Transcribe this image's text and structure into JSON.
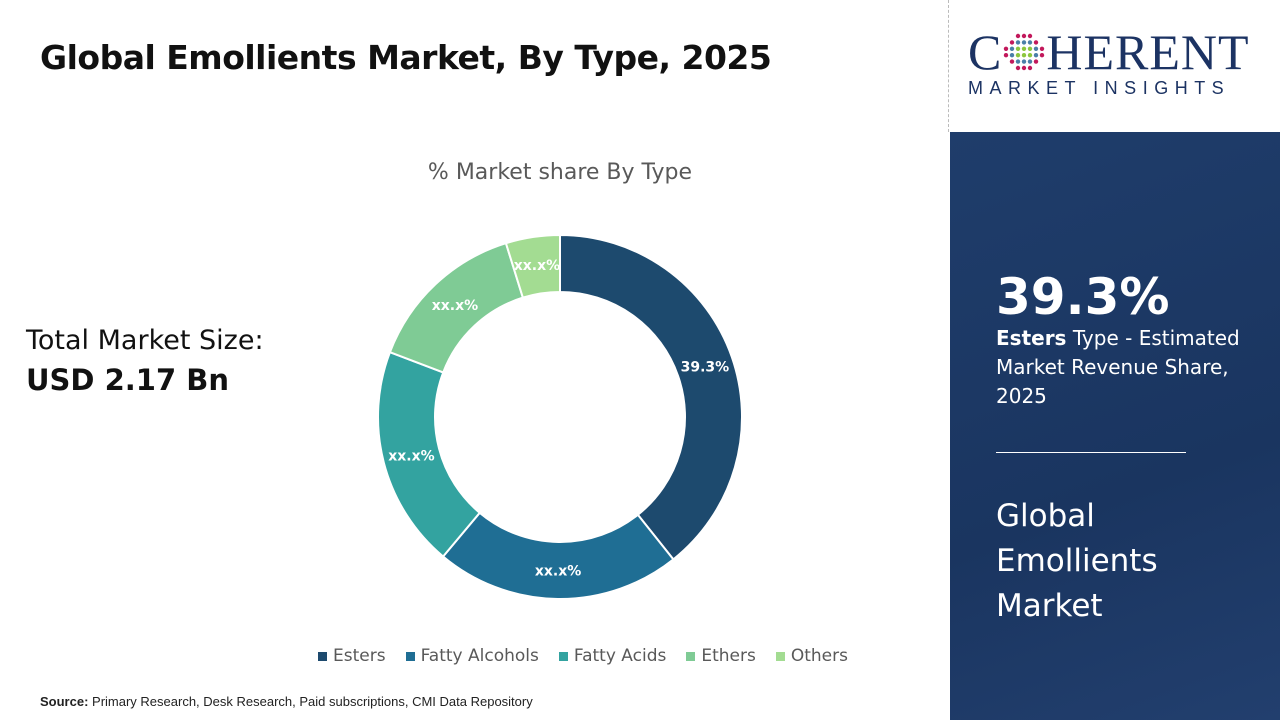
{
  "header": {
    "title": "Global Emollients Market, By Type, 2025"
  },
  "market_size": {
    "label": "Total Market Size:",
    "value": "USD 2.17 Bn"
  },
  "source": {
    "label": "Source:",
    "text": " Primary Research, Desk Research, Paid subscriptions, CMI Data Repository"
  },
  "logo": {
    "text_top": "COHERENT",
    "text_bottom": "MARKET INSIGHTS"
  },
  "panel": {
    "percent": "39.3%",
    "highlight": "Esters",
    "desc": " Type - Estimated Market Revenue Share, 2025",
    "market": "Global Emollients Market"
  },
  "chart_data": {
    "type": "pie",
    "donut": true,
    "title": "% Market share By Type",
    "categories": [
      "Esters",
      "Fatty Alcohols",
      "Fatty Acids",
      "Ethers",
      "Others"
    ],
    "values": [
      39.3,
      21.8,
      19.7,
      14.4,
      4.8
    ],
    "data_labels": [
      "39.3%",
      "xx.x%",
      "xx.x%",
      "xx.x%",
      "xx.x%"
    ],
    "colors": [
      "#1d4a6e",
      "#1f6e94",
      "#33a3a0",
      "#7fcb95",
      "#a3dc92"
    ],
    "legend": "bottom"
  }
}
